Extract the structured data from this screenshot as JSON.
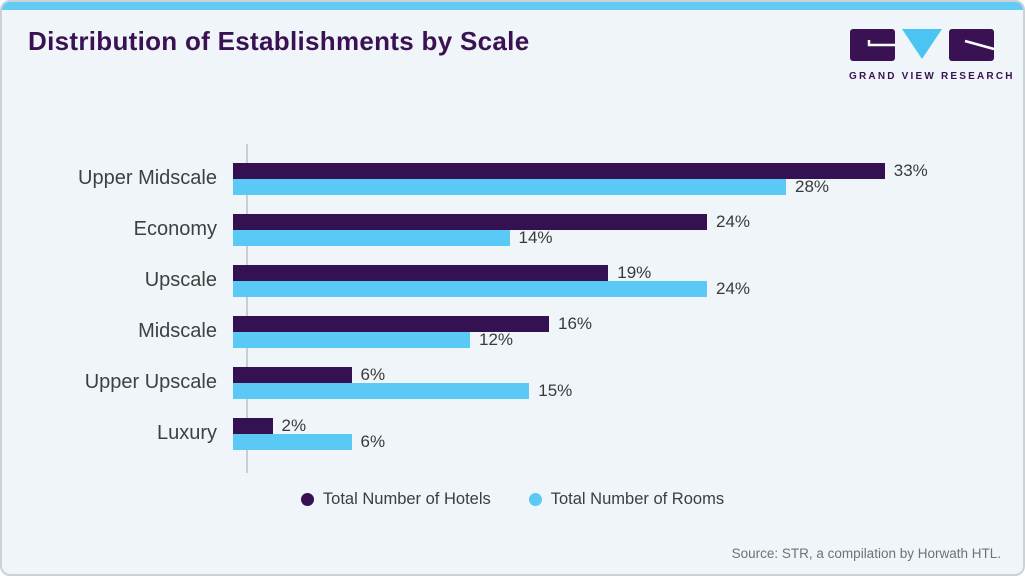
{
  "page": {
    "title": "Distribution of Establishments by Scale",
    "source": "Source: STR, a compilation by Horwath HTL."
  },
  "logo": {
    "brand": "GRAND VIEW RESEARCH"
  },
  "chart_data": {
    "type": "bar",
    "orientation": "horizontal",
    "title": "Distribution of Establishments by Scale",
    "categories": [
      "Upper Midscale",
      "Economy",
      "Upscale",
      "Midscale",
      "Upper Upscale",
      "Luxury"
    ],
    "series": [
      {
        "name": "Total Number of Hotels",
        "color": "#341251",
        "values": [
          33,
          24,
          19,
          16,
          6,
          2
        ]
      },
      {
        "name": "Total Number of Rooms",
        "color": "#5bc9f5",
        "values": [
          28,
          14,
          24,
          12,
          15,
          6
        ]
      }
    ],
    "value_suffix": "%",
    "xlim": [
      0,
      35
    ],
    "gridlines": false,
    "legend_position": "bottom"
  },
  "colors": {
    "card_background": "#f0f5f9",
    "top_strip": "#61cbf3",
    "title_text": "#3a1254",
    "category_text": "#404040",
    "value_text": "#3a3a3a",
    "axis_line": "#c9ced3",
    "source_text": "#6e7276",
    "logo_purple": "#3a1254",
    "logo_triangle": "#4cc4f1"
  }
}
